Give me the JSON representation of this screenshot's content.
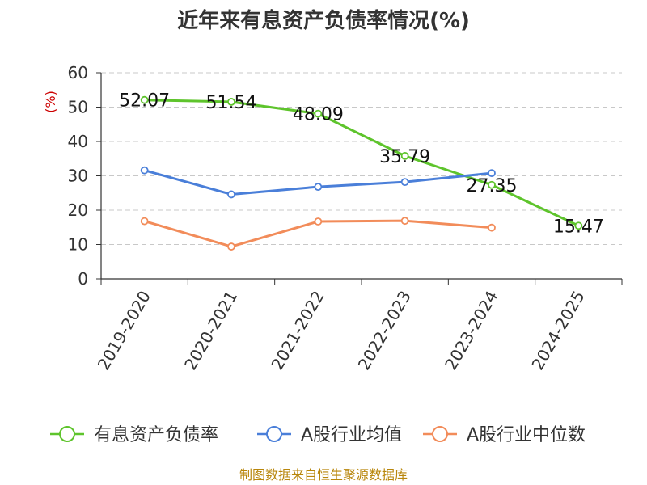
{
  "chart_data": {
    "type": "line",
    "title": "近年来有息资产负债率情况(%)",
    "ylabel": "(%)",
    "ylim": [
      0,
      60
    ],
    "yticks": [
      0,
      10,
      20,
      30,
      40,
      50,
      60
    ],
    "grid": true,
    "legend_position": "bottom",
    "categories": [
      "2019-2020",
      "2020-2021",
      "2021-2022",
      "2022-2023",
      "2023-2024",
      "2024-2025"
    ],
    "series": [
      {
        "name": "有息资产负债率",
        "color": "#5ec42c",
        "values": [
          52.07,
          51.54,
          48.09,
          35.79,
          27.35,
          15.47
        ],
        "show_labels": true
      },
      {
        "name": "A股行业均值",
        "color": "#4a7fd9",
        "values": [
          31.6,
          24.6,
          26.8,
          28.2,
          30.8,
          null
        ],
        "show_labels": false
      },
      {
        "name": "A股行业中位数",
        "color": "#f28c5a",
        "values": [
          16.8,
          9.4,
          16.7,
          16.9,
          14.9,
          null
        ],
        "show_labels": false
      }
    ],
    "source": "制图数据来自恒生聚源数据库"
  }
}
